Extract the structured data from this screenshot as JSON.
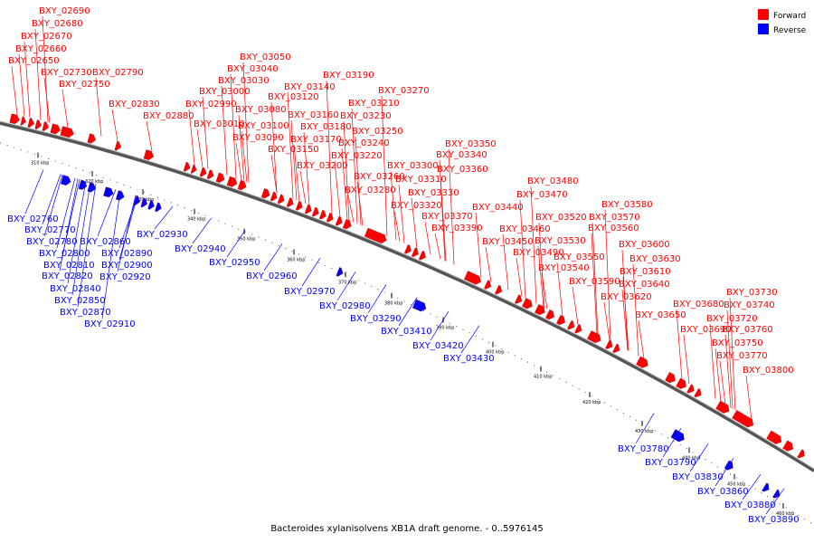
{
  "caption": "Bacteroides xylanisolvens XB1A draft genome. - 0..5976145",
  "legend": [
    {
      "label": "Forward",
      "color": "#ff0000"
    },
    {
      "label": "Reverse",
      "color": "#0000ff"
    }
  ],
  "ticks": [
    "310 kbp",
    "320 kbp",
    "330 kbp",
    "340 kbp",
    "350 kbp",
    "360 kbp",
    "370 kbp",
    "380 kbp",
    "390 kbp",
    "400 kbp",
    "410 kbp",
    "420 kbp",
    "430 kbp",
    "440 kbp",
    "450 kbp",
    "460 kbp"
  ],
  "forward_labels": [
    "BXY_02690",
    "BXY_02680",
    "BXY_02670",
    "BXY_02660",
    "BXY_02650",
    "BXY_02730",
    "BXY_02790",
    "BXY_02750",
    "BXY_02830",
    "BXY_02880",
    "BXY_03050",
    "BXY_03040",
    "BXY_03030",
    "BXY_03000",
    "BXY_02990",
    "BXY_03010",
    "BXY_03080",
    "BXY_03100",
    "BXY_03090",
    "BXY_03120",
    "BXY_03140",
    "BXY_03160",
    "BXY_03180",
    "BXY_03170",
    "BXY_03150",
    "BXY_03190",
    "BXY_03210",
    "BXY_03230",
    "BXY_03250",
    "BXY_03240",
    "BXY_03220",
    "BXY_03200",
    "BXY_03270",
    "BXY_03260",
    "BXY_03280",
    "BXY_03350",
    "BXY_03340",
    "BXY_03360",
    "BXY_03300",
    "BXY_03310",
    "BXY_03330",
    "BXY_03320",
    "BXY_03370",
    "BXY_03390",
    "BXY_03480",
    "BXY_03470",
    "BXY_03440",
    "BXY_03460",
    "BXY_03450",
    "BXY_03520",
    "BXY_03490",
    "BXY_03530",
    "BXY_03540",
    "BXY_03580",
    "BXY_03570",
    "BXY_03560",
    "BXY_03600",
    "BXY_03550",
    "BXY_03610",
    "BXY_03590",
    "BXY_03630",
    "BXY_03640",
    "BXY_03620",
    "BXY_03650",
    "BXY_03730",
    "BXY_03740",
    "BXY_03680",
    "BXY_03720",
    "BXY_03690",
    "BXY_03760",
    "BXY_03750",
    "BXY_03770",
    "BXY_03800"
  ],
  "reverse_labels": [
    "BXY_02760",
    "BXY_02770",
    "BXY_02780",
    "BXY_02860",
    "BXY_02800",
    "BXY_02890",
    "BXY_02810",
    "BXY_02900",
    "BXY_02820",
    "BXY_02920",
    "BXY_02840",
    "BXY_02850",
    "BXY_02870",
    "BXY_02910",
    "BXY_02930",
    "BXY_02940",
    "BXY_02950",
    "BXY_02960",
    "BXY_02970",
    "BXY_02980",
    "BXY_03290",
    "BXY_03410",
    "BXY_03420",
    "BXY_03430",
    "BXY_03780",
    "BXY_03790",
    "BXY_03830",
    "BXY_03860",
    "BXY_03880",
    "BXY_03890"
  ]
}
